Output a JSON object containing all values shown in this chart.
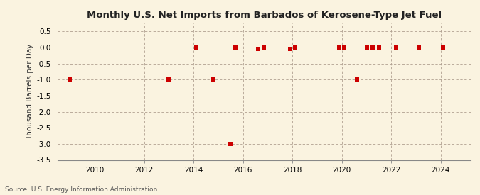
{
  "title": "Monthly U.S. Net Imports from Barbados of Kerosene-Type Jet Fuel",
  "ylabel": "Thousand Barrels per Day",
  "source": "Source: U.S. Energy Information Administration",
  "background_color": "#faf3e0",
  "plot_bg_color": "#faf3e0",
  "data_color": "#cc0000",
  "xlim": [
    2008.5,
    2025.2
  ],
  "ylim": [
    -3.5,
    0.75
  ],
  "xticks": [
    2010,
    2012,
    2014,
    2016,
    2018,
    2020,
    2022,
    2024
  ],
  "yticks": [
    0.5,
    0.0,
    -0.5,
    -1.0,
    -1.5,
    -2.0,
    -2.5,
    -3.0,
    -3.5
  ],
  "ytick_labels": [
    "0.5",
    "0.0",
    "-0.5",
    "-1.0",
    "-1.5",
    "-2.0",
    "-2.5",
    "-3.0",
    "-3.5"
  ],
  "points_x": [
    2009.0,
    2013.0,
    2014.1,
    2014.8,
    2015.5,
    2015.7,
    2016.6,
    2016.85,
    2017.9,
    2018.1,
    2019.9,
    2020.1,
    2020.6,
    2021.0,
    2021.25,
    2021.5,
    2022.2,
    2023.1,
    2024.1
  ],
  "points_y": [
    -1.0,
    -1.0,
    0.0,
    -1.0,
    -3.0,
    0.0,
    -0.05,
    0.0,
    -0.05,
    0.0,
    0.0,
    0.0,
    -1.0,
    0.0,
    0.0,
    0.0,
    0.0,
    0.0,
    0.0
  ],
  "title_fontsize": 9.5,
  "tick_fontsize": 7.5,
  "ylabel_fontsize": 7.5,
  "source_fontsize": 6.5,
  "marker_size": 4.5
}
